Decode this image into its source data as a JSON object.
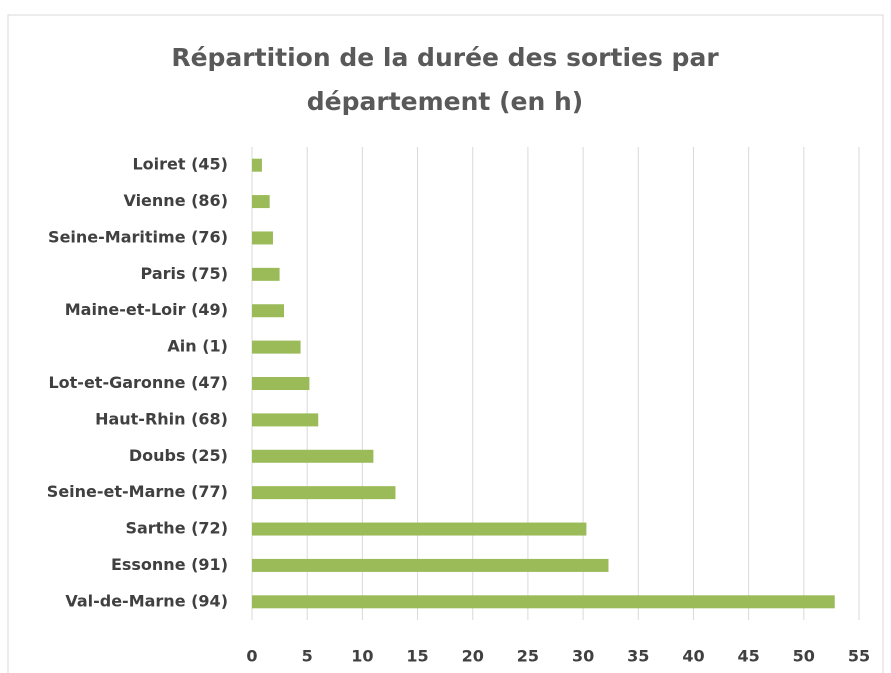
{
  "chart_data": {
    "type": "barh",
    "title": "Répartition de la durée des sorties par département (en h)",
    "categories": [
      "Loiret (45)",
      "Vienne (86)",
      "Seine-Maritime (76)",
      "Paris (75)",
      "Maine-et-Loir (49)",
      "Ain (1)",
      "Lot-et-Garonne (47)",
      "Haut-Rhin (68)",
      "Doubs (25)",
      "Seine-et-Marne (77)",
      "Sarthe (72)",
      "Essonne (91)",
      "Val-de-Marne (94)"
    ],
    "values": [
      0.9,
      1.6,
      1.9,
      2.5,
      2.9,
      4.4,
      5.2,
      6,
      11,
      13,
      30.3,
      32.3,
      52.8
    ],
    "color": "#9bbb59",
    "xlim": [
      0,
      55
    ],
    "xticks": [
      0,
      5,
      10,
      15,
      20,
      25,
      30,
      35,
      40,
      45,
      50,
      55
    ],
    "grid": true
  }
}
